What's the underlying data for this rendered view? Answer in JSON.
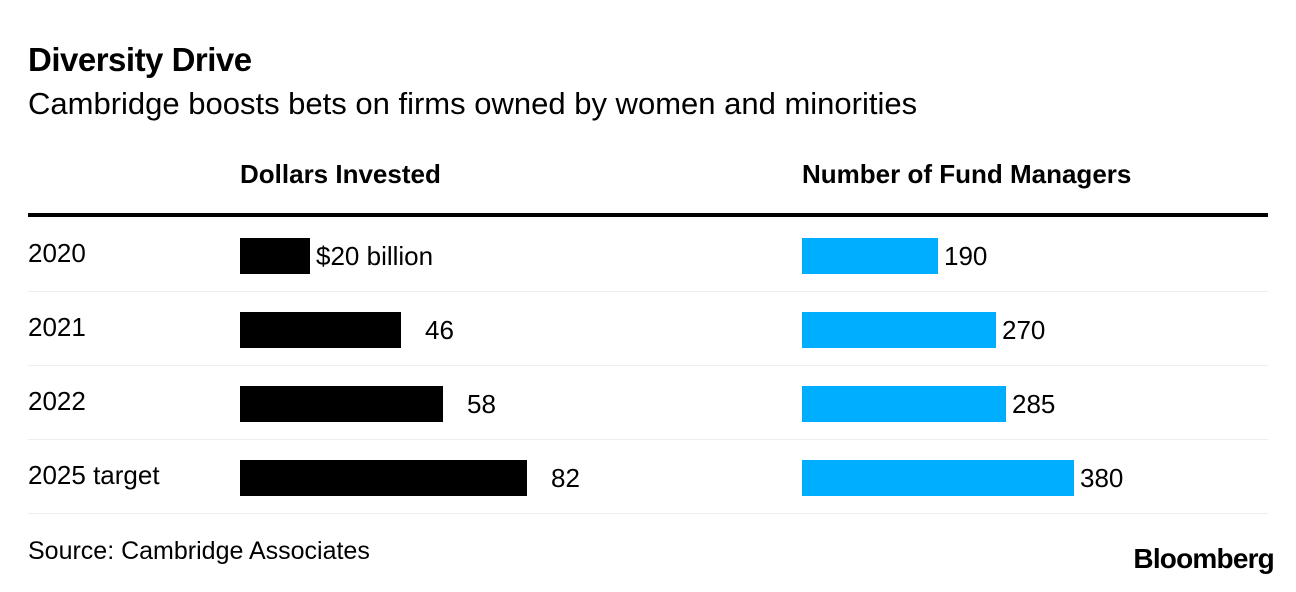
{
  "header": {
    "title": "Diversity Drive",
    "subtitle": "Cambridge boosts bets on firms owned by women and minorities"
  },
  "columns": {
    "left": "Dollars Invested",
    "right": "Number of Fund Managers"
  },
  "footer": {
    "source": "Source: Cambridge Associates",
    "brand": "Bloomberg"
  },
  "colors": {
    "dollars": "#000000",
    "managers": "#00aeff"
  },
  "chart_data": {
    "type": "bar",
    "orientation": "horizontal",
    "title": "Diversity Drive",
    "subtitle": "Cambridge boosts bets on firms owned by women and minorities",
    "categories": [
      "2020",
      "2021",
      "2022",
      "2025 target"
    ],
    "series": [
      {
        "name": "Dollars Invested",
        "unit": "billion USD",
        "values": [
          20,
          46,
          58,
          82
        ],
        "labels": [
          "$20 billion",
          "46",
          "58",
          "82"
        ],
        "color": "#000000",
        "xlim": [
          0,
          120
        ]
      },
      {
        "name": "Number of Fund Managers",
        "values": [
          190,
          270,
          285,
          380
        ],
        "labels": [
          "190",
          "270",
          "285",
          "380"
        ],
        "color": "#00aeff",
        "xlim": [
          0,
          600
        ]
      }
    ],
    "grid": false,
    "legend": "none"
  }
}
